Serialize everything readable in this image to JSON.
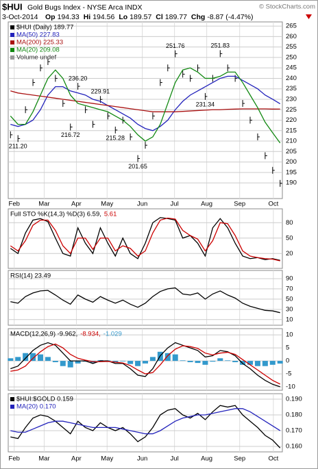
{
  "header": {
    "symbol": "$HUI",
    "title": "Gold Bugs Index - NYSE Arca INDX",
    "credit": "© StockCharts.com",
    "date": "3-Oct-2014",
    "quote": [
      {
        "label": "Op",
        "value": "194.33"
      },
      {
        "label": "Hi",
        "value": "194.56"
      },
      {
        "label": "Lo",
        "value": "189.57"
      },
      {
        "label": "Cl",
        "value": "189.77"
      },
      {
        "label": "Chg",
        "value": "-8.87 (-4.47%)"
      }
    ]
  },
  "chart_data": [
    {
      "type": "line",
      "volume_label": "Volume undef",
      "xlim": [
        -0.3,
        36.3
      ],
      "xticks": [
        {
          "value": 0.5,
          "label": "Feb"
        },
        {
          "value": 4.5,
          "label": "Mar"
        },
        {
          "value": 8.8,
          "label": "Apr"
        },
        {
          "value": 12.9,
          "label": "May"
        },
        {
          "value": 17.6,
          "label": "Jun"
        },
        {
          "value": 21.9,
          "label": "Jul"
        },
        {
          "value": 26.2,
          "label": "Aug"
        },
        {
          "value": 30.6,
          "label": "Sep"
        },
        {
          "value": 35.1,
          "label": "Oct"
        }
      ],
      "ylim": [
        182.5,
        267
      ],
      "yticks": [
        190,
        195,
        200,
        205,
        210,
        215,
        220,
        225,
        230,
        235,
        240,
        245,
        250,
        255,
        260,
        265
      ],
      "series": [
        {
          "name": "$HUI (Daily) 189.77",
          "color": "#000000",
          "style": "bars",
          "values": [
            213,
            211.2,
            225,
            238,
            245,
            248,
            240,
            228,
            216.72,
            236.2,
            225,
            218,
            229.91,
            222,
            215.28,
            220,
            212,
            201.65,
            208,
            222,
            238,
            245,
            251.76,
            242,
            240,
            245,
            231.34,
            240,
            251.83,
            245,
            240,
            228,
            220,
            212,
            203,
            196,
            189.77
          ],
          "value_labels": [
            null,
            "211.20",
            null,
            null,
            null,
            null,
            null,
            null,
            "216.72",
            "236.20",
            null,
            null,
            "229.91",
            null,
            "215.28",
            null,
            null,
            "201.65",
            null,
            null,
            null,
            null,
            "251.76",
            null,
            null,
            null,
            "231.34",
            null,
            "251.83",
            null,
            null,
            null,
            null,
            null,
            null,
            null,
            null
          ]
        },
        {
          "name": "MA(50) 227.83",
          "color": "#2222bb",
          "style": "line",
          "values": [
            218,
            217,
            218,
            220,
            225,
            232,
            236,
            236,
            234,
            233,
            232,
            230,
            229,
            227,
            225,
            223,
            221,
            218,
            216,
            215,
            217,
            220,
            225,
            229,
            232,
            234,
            236,
            238,
            240,
            241,
            241,
            239,
            237,
            235,
            232,
            230,
            227.83
          ]
        },
        {
          "name": "MA(200) 225.33",
          "color": "#aa1111",
          "style": "line",
          "values": [
            234,
            233,
            232.5,
            232,
            231.5,
            231,
            230.5,
            230,
            229.5,
            229,
            228.5,
            228,
            227.5,
            227,
            226.5,
            226,
            225.5,
            225,
            224.5,
            224,
            224,
            224,
            224,
            224.2,
            224.4,
            224.6,
            224.8,
            225,
            225,
            225.2,
            225.3,
            225.4,
            225.4,
            225.4,
            225.4,
            225.3,
            225.33
          ]
        },
        {
          "name": "MA(20) 209.08",
          "color": "#118811",
          "style": "line",
          "values": [
            222,
            218,
            218,
            224,
            232,
            240,
            244,
            240,
            232,
            228,
            227,
            226,
            225,
            224,
            222,
            220,
            217,
            213,
            210,
            212,
            218,
            228,
            238,
            244,
            245,
            243,
            240,
            240,
            241,
            243,
            243,
            238,
            232,
            226,
            219,
            214,
            209.08
          ]
        }
      ]
    },
    {
      "type": "line",
      "legend": [
        {
          "text": "Full STO %K(14,3) %D(3) 6.59,",
          "color": "#000000"
        },
        {
          "text": "5.61",
          "color": "#cc0000"
        }
      ],
      "ylim": [
        -9,
        107
      ],
      "yticks": [
        20,
        50,
        80
      ],
      "series": [
        {
          "color": "#000000",
          "style": "line",
          "values": [
            30,
            20,
            60,
            85,
            88,
            82,
            50,
            20,
            15,
            70,
            40,
            20,
            70,
            40,
            15,
            50,
            20,
            10,
            40,
            80,
            90,
            88,
            85,
            50,
            55,
            40,
            15,
            70,
            88,
            70,
            40,
            15,
            10,
            12,
            8,
            10,
            6.59
          ]
        },
        {
          "color": "#cc0000",
          "style": "line",
          "values": [
            35,
            25,
            45,
            75,
            85,
            85,
            65,
            35,
            20,
            50,
            50,
            28,
            50,
            50,
            25,
            35,
            30,
            15,
            25,
            60,
            85,
            89,
            87,
            65,
            55,
            48,
            25,
            45,
            80,
            78,
            55,
            25,
            15,
            12,
            10,
            9,
            5.61
          ]
        }
      ]
    },
    {
      "type": "line",
      "legend": [
        {
          "text": "RSI(14) 23.49",
          "color": "#000000"
        }
      ],
      "ylim": [
        -1,
        106
      ],
      "yticks": [
        10,
        30,
        50,
        70,
        90
      ],
      "series": [
        {
          "color": "#000000",
          "style": "line",
          "values": [
            45,
            42,
            55,
            62,
            66,
            67,
            58,
            48,
            40,
            58,
            50,
            44,
            55,
            48,
            42,
            48,
            40,
            34,
            42,
            55,
            65,
            70,
            72,
            60,
            58,
            62,
            50,
            60,
            66,
            58,
            52,
            42,
            36,
            32,
            28,
            27,
            23.49
          ]
        }
      ]
    },
    {
      "type": "line",
      "legend": [
        {
          "text": "MACD(12,26,9) -9.962,",
          "color": "#000000"
        },
        {
          "text": "-8.934,",
          "color": "#cc0000"
        },
        {
          "text": "-1.029",
          "color": "#3399cc"
        }
      ],
      "ylim": [
        -11.3,
        12.4
      ],
      "yticks": [
        -10,
        -5,
        0,
        5,
        10
      ],
      "series": [
        {
          "color": "#3399cc",
          "style": "histogram",
          "values": [
            1,
            1.5,
            3,
            3,
            2.5,
            1.5,
            -0.5,
            -2,
            -2.5,
            -1,
            -0.3,
            -0.7,
            0.3,
            0.2,
            -0.5,
            -0.2,
            -1.2,
            -2,
            -1,
            1.5,
            3.5,
            3,
            2.5,
            0.2,
            -0.5,
            -0.8,
            -1.5,
            -0.3,
            1,
            0.2,
            -0.5,
            -1.5,
            -1.5,
            -2,
            -2,
            -1.5,
            -1.029
          ]
        },
        {
          "color": "#000000",
          "style": "line",
          "values": [
            -3,
            -2,
            1,
            4,
            6,
            7,
            6,
            3,
            0,
            0,
            0,
            -1,
            0,
            0,
            -1,
            -1,
            -3,
            -5.5,
            -6,
            -3,
            2,
            5,
            7,
            6,
            5,
            4,
            1.5,
            2,
            4,
            3.5,
            2,
            -1,
            -3,
            -5.5,
            -7.5,
            -9,
            -9.962
          ]
        },
        {
          "color": "#cc0000",
          "style": "line",
          "values": [
            -4,
            -3.5,
            -2,
            1,
            3.5,
            5.5,
            6.5,
            5,
            2.5,
            1,
            0.3,
            -0.3,
            -0.3,
            -0.2,
            -0.5,
            -0.8,
            -1.8,
            -3.5,
            -5,
            -4.5,
            -1.5,
            2,
            4.5,
            5.8,
            5.5,
            4.8,
            3,
            2.3,
            3,
            3.3,
            2.5,
            0.5,
            -1.5,
            -3.5,
            -5.5,
            -7.5,
            -8.934
          ]
        }
      ]
    },
    {
      "type": "line",
      "xlim": [
        -0.3,
        36.3
      ],
      "xticks": [
        {
          "value": 0.5,
          "label": "Feb"
        },
        {
          "value": 4.5,
          "label": "Mar"
        },
        {
          "value": 8.8,
          "label": "Apr"
        },
        {
          "value": 12.9,
          "label": "May"
        },
        {
          "value": 17.6,
          "label": "Jun"
        },
        {
          "value": 21.9,
          "label": "Jul"
        },
        {
          "value": 26.2,
          "label": "Aug"
        },
        {
          "value": 30.6,
          "label": "Sep"
        },
        {
          "value": 35.1,
          "label": "Oct"
        }
      ],
      "ylim": [
        0.1565,
        0.1935
      ],
      "yticks": [
        {
          "value": 0.16,
          "label": "0.160"
        },
        {
          "value": 0.17,
          "label": "0.170"
        },
        {
          "value": 0.18,
          "label": "0.180"
        },
        {
          "value": 0.19,
          "label": "0.190"
        }
      ],
      "series": [
        {
          "name": "$HUI:$GOLD 0.159",
          "color": "#000000",
          "style": "line",
          "values": [
            0.166,
            0.165,
            0.172,
            0.178,
            0.18,
            0.179,
            0.176,
            0.172,
            0.168,
            0.176,
            0.172,
            0.17,
            0.175,
            0.172,
            0.17,
            0.172,
            0.168,
            0.163,
            0.166,
            0.172,
            0.18,
            0.183,
            0.184,
            0.18,
            0.178,
            0.181,
            0.177,
            0.182,
            0.186,
            0.185,
            0.186,
            0.18,
            0.176,
            0.172,
            0.167,
            0.164,
            0.159
          ]
        },
        {
          "name": "MA(20) 0.170",
          "color": "#2222bb",
          "style": "line",
          "values": [
            0.17,
            0.169,
            0.169,
            0.171,
            0.173,
            0.175,
            0.176,
            0.176,
            0.175,
            0.174,
            0.173,
            0.172,
            0.172,
            0.172,
            0.172,
            0.171,
            0.17,
            0.169,
            0.168,
            0.168,
            0.17,
            0.173,
            0.176,
            0.178,
            0.179,
            0.18,
            0.18,
            0.181,
            0.182,
            0.183,
            0.184,
            0.184,
            0.182,
            0.179,
            0.176,
            0.173,
            0.17
          ]
        }
      ]
    }
  ]
}
